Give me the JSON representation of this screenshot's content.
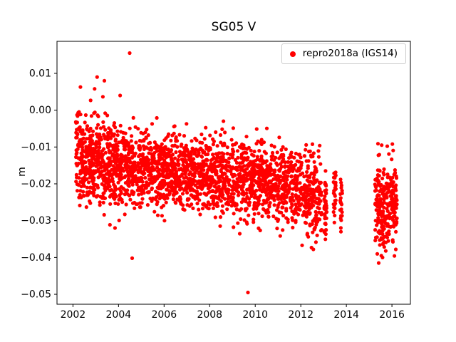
{
  "chart_data": {
    "type": "scatter",
    "title": "SG05 V",
    "xlabel": "",
    "ylabel": "m",
    "grid": false,
    "legend_position": "upper right",
    "marker_color": "#ff0000",
    "marker_shape": "dot",
    "xlim": [
      2001.3,
      2016.81
    ],
    "ylim": [
      -0.0527,
      0.0187
    ],
    "x_ticks": [
      {
        "value": 2002,
        "label": "2002"
      },
      {
        "value": 2004,
        "label": "2004"
      },
      {
        "value": 2006,
        "label": "2006"
      },
      {
        "value": 2008,
        "label": "2008"
      },
      {
        "value": 2010,
        "label": "2010"
      },
      {
        "value": 2012,
        "label": "2012"
      },
      {
        "value": 2014,
        "label": "2014"
      },
      {
        "value": 2016,
        "label": "2016"
      }
    ],
    "y_ticks": [
      {
        "value": 0.01,
        "label": "0.01"
      },
      {
        "value": 0.0,
        "label": "0.00"
      },
      {
        "value": -0.01,
        "label": "−0.01"
      },
      {
        "value": -0.02,
        "label": "−0.02"
      },
      {
        "value": -0.03,
        "label": "−0.03"
      },
      {
        "value": -0.04,
        "label": "−0.04"
      },
      {
        "value": -0.05,
        "label": "−0.05"
      }
    ],
    "series": [
      {
        "name": "repro2018a (IGS14)",
        "model": {
          "kind": "gaussian-segments",
          "seed": 20180514,
          "segments": [
            {
              "x0": 2002.12,
              "x1": 2002.6,
              "n": 125,
              "m0": -0.0128,
              "m1": -0.0145,
              "sd": 0.0058,
              "lo": -0.0305,
              "hi": 0.0045
            },
            {
              "x0": 2002.6,
              "x1": 2003.05,
              "n": 120,
              "m0": -0.0145,
              "m1": -0.013,
              "sd": 0.006,
              "lo": -0.031,
              "hi": 0.0058
            },
            {
              "x0": 2003.05,
              "x1": 2003.6,
              "n": 135,
              "m0": -0.0125,
              "m1": -0.015,
              "sd": 0.0063,
              "lo": -0.0315,
              "hi": 0.008
            },
            {
              "x0": 2003.6,
              "x1": 2004.05,
              "n": 120,
              "m0": -0.015,
              "m1": -0.0155,
              "sd": 0.0055,
              "lo": -0.032,
              "hi": 0.003
            },
            {
              "x0": 2004.05,
              "x1": 2005.0,
              "n": 225,
              "m0": -0.015,
              "m1": -0.0165,
              "sd": 0.005,
              "lo": -0.033,
              "hi": 0.0005
            },
            {
              "x0": 2005.0,
              "x1": 2006.0,
              "n": 230,
              "m0": -0.0165,
              "m1": -0.016,
              "sd": 0.005,
              "lo": -0.034,
              "hi": -0.001
            },
            {
              "x0": 2006.0,
              "x1": 2007.0,
              "n": 230,
              "m0": -0.016,
              "m1": -0.017,
              "sd": 0.005,
              "lo": -0.0335,
              "hi": -0.001
            },
            {
              "x0": 2007.0,
              "x1": 2008.0,
              "n": 230,
              "m0": -0.017,
              "m1": -0.0178,
              "sd": 0.005,
              "lo": -0.0345,
              "hi": -0.002
            },
            {
              "x0": 2008.0,
              "x1": 2009.0,
              "n": 225,
              "m0": -0.0178,
              "m1": -0.0188,
              "sd": 0.005,
              "lo": -0.035,
              "hi": -0.003
            },
            {
              "x0": 2009.0,
              "x1": 2010.0,
              "n": 220,
              "m0": -0.0188,
              "m1": -0.0195,
              "sd": 0.005,
              "lo": -0.036,
              "hi": -0.004
            },
            {
              "x0": 2010.0,
              "x1": 2011.0,
              "n": 220,
              "m0": -0.0195,
              "m1": -0.02,
              "sd": 0.005,
              "lo": -0.036,
              "hi": -0.0048
            },
            {
              "x0": 2011.0,
              "x1": 2012.0,
              "n": 215,
              "m0": -0.02,
              "m1": -0.021,
              "sd": 0.0052,
              "lo": -0.0368,
              "hi": -0.005
            },
            {
              "x0": 2012.0,
              "x1": 2012.92,
              "n": 195,
              "m0": -0.021,
              "m1": -0.024,
              "sd": 0.0058,
              "lo": -0.038,
              "hi": -0.0058
            },
            {
              "x0": 2013.02,
              "x1": 2013.14,
              "n": 42,
              "m0": -0.0262,
              "m1": -0.0268,
              "sd": 0.0048,
              "lo": -0.0372,
              "hi": -0.0165
            },
            {
              "x0": 2013.43,
              "x1": 2013.54,
              "n": 32,
              "m0": -0.0222,
              "m1": -0.0222,
              "sd": 0.004,
              "lo": -0.0305,
              "hi": -0.014
            },
            {
              "x0": 2013.72,
              "x1": 2013.82,
              "n": 22,
              "m0": -0.0238,
              "m1": -0.0238,
              "sd": 0.0044,
              "lo": -0.033,
              "hi": -0.0155
            },
            {
              "x0": 2015.25,
              "x1": 2016.22,
              "n": 255,
              "m0": -0.0252,
              "m1": -0.0268,
              "sd": 0.006,
              "lo": -0.04,
              "hi": -0.0085
            }
          ],
          "outliers": [
            [
              2004.49,
              0.0155
            ],
            [
              2009.68,
              -0.0495
            ],
            [
              2004.6,
              -0.0402
            ],
            [
              2015.42,
              -0.0415
            ],
            [
              2003.38,
              0.008
            ],
            [
              2003.06,
              0.009
            ],
            [
              2002.33,
              0.0063
            ],
            [
              2002.95,
              0.0058
            ],
            [
              2004.07,
              0.004
            ],
            [
              2012.55,
              -0.0378
            ],
            [
              2016.02,
              -0.0092
            ],
            [
              2015.55,
              -0.0095
            ]
          ]
        }
      }
    ]
  }
}
